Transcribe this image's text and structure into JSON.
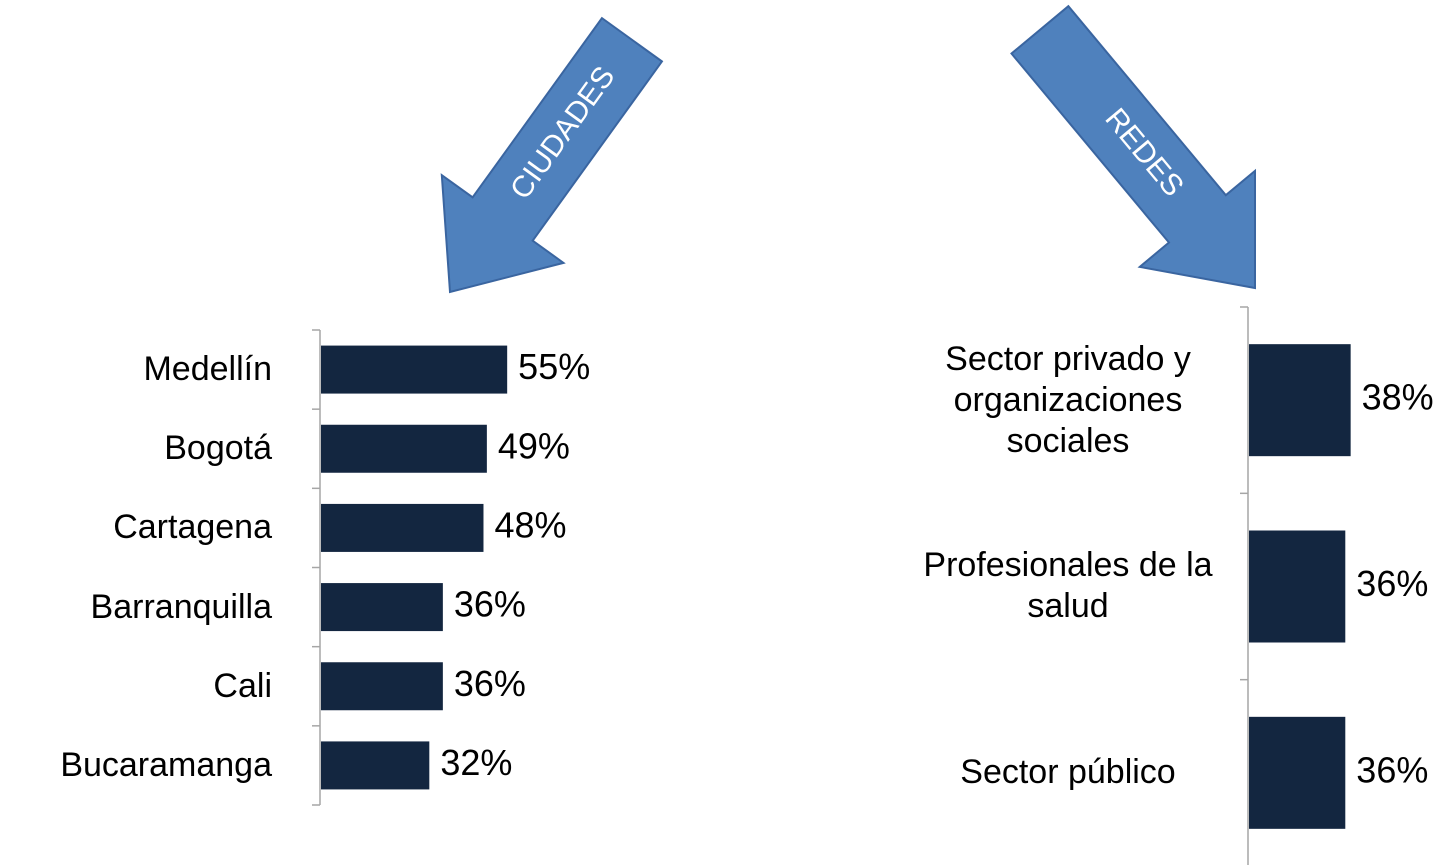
{
  "chart_data": [
    {
      "type": "bar",
      "orientation": "horizontal",
      "annotation": "CIUDADES",
      "color": "#132640",
      "categories": [
        "Medellín",
        "Bogotá",
        "Cartagena",
        "Barranquilla",
        "Cali",
        "Bucaramanga"
      ],
      "values": [
        55,
        49,
        48,
        36,
        36,
        32
      ],
      "value_labels": [
        "55%",
        "49%",
        "48%",
        "36%",
        "36%",
        "32%"
      ]
    },
    {
      "type": "bar",
      "orientation": "horizontal",
      "annotation": "REDES",
      "color": "#132640",
      "categories": [
        "Sector privado y organizaciones sociales",
        "Profesionales de la salud",
        "Sector público"
      ],
      "values": [
        38,
        36,
        36
      ],
      "value_labels": [
        "38%",
        "36%",
        "36%"
      ]
    }
  ]
}
